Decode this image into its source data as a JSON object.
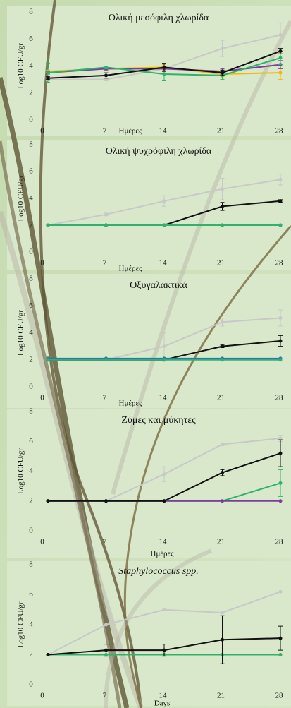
{
  "chart_data": [
    {
      "type": "line",
      "title": "Ολική μεσόφιλη χλωρίδα",
      "y_label": "Log10 CFU/gr",
      "x_label": "Ημέρες",
      "categories": [
        "0",
        "7",
        "14",
        "21",
        "28"
      ],
      "ylim": [
        0,
        8
      ],
      "yticks": [
        0,
        2,
        4,
        6,
        8
      ],
      "series": [
        {
          "color": "#c8c8c8",
          "values": [
            3.0,
            3.0,
            3.8,
            5.3,
            6.3
          ],
          "errors": [
            0.1,
            0.1,
            0.4,
            0.6,
            0.9
          ]
        },
        {
          "color": "#f5b800",
          "values": [
            3.6,
            3.8,
            3.9,
            3.4,
            3.5
          ],
          "errors": [
            0.1,
            0.1,
            0.2,
            0.2,
            0.5
          ]
        },
        {
          "color": "#7a3f9d",
          "values": [
            3.5,
            3.8,
            3.8,
            3.6,
            4.1
          ],
          "errors": [
            0.1,
            0.1,
            0.2,
            0.2,
            0.3
          ]
        },
        {
          "color": "#2db36a",
          "values": [
            3.5,
            3.9,
            3.4,
            3.3,
            4.6
          ],
          "errors": [
            0.7,
            0.1,
            0.5,
            0.3,
            0.5
          ]
        },
        {
          "color": "#111111",
          "values": [
            3.1,
            3.3,
            3.9,
            3.5,
            5.1
          ],
          "errors": [
            0.1,
            0.2,
            0.3,
            0.2,
            0.2
          ]
        }
      ]
    },
    {
      "type": "line",
      "title": "Ολική ψυχρόφιλη χλωρίδα",
      "y_label": "Log10 CFU/gr",
      "x_label": "Ημέρες",
      "categories": [
        "0",
        "7",
        "14",
        "21",
        "28"
      ],
      "ylim": [
        0,
        8
      ],
      "yticks": [
        0,
        2,
        4,
        6,
        8
      ],
      "series": [
        {
          "color": "#c8c8c8",
          "values": [
            2.0,
            2.8,
            3.8,
            4.7,
            5.4
          ],
          "errors": [
            0,
            0.1,
            0.4,
            0.8,
            0.4
          ]
        },
        {
          "color": "#f5b800",
          "values": [
            2.0,
            2.0,
            2.0,
            2.0,
            2.0
          ],
          "errors": [
            0,
            0,
            0,
            0,
            0
          ]
        },
        {
          "color": "#7a3f9d",
          "values": [
            2.0,
            2.0,
            2.0,
            2.0,
            2.0
          ],
          "errors": [
            0,
            0,
            0,
            0,
            0
          ]
        },
        {
          "color": "#111111",
          "values": [
            2.0,
            2.0,
            2.0,
            3.4,
            3.8
          ],
          "errors": [
            0,
            0,
            0,
            0.3,
            0.1
          ]
        },
        {
          "color": "#2db36a",
          "values": [
            2.0,
            2.0,
            2.0,
            2.0,
            2.0
          ],
          "errors": [
            0,
            0,
            0,
            0,
            0
          ]
        }
      ]
    },
    {
      "type": "line",
      "title": "Οξυγαλακτικά",
      "y_label": "Log10 CFU/gr",
      "x_label": "Ημέρες",
      "categories": [
        "0",
        "7",
        "14",
        "21",
        "28"
      ],
      "ylim": [
        0,
        8
      ],
      "yticks": [
        0,
        2,
        4,
        6,
        8
      ],
      "series": [
        {
          "color": "#c8c8c8",
          "values": [
            2.0,
            2.0,
            3.0,
            4.8,
            5.1
          ],
          "errors": [
            0,
            0,
            1.0,
            0.3,
            0.6
          ]
        },
        {
          "color": "#111111",
          "values": [
            2.0,
            2.0,
            2.0,
            3.0,
            3.4
          ],
          "errors": [
            0,
            0,
            0,
            0.1,
            0.4
          ]
        },
        {
          "color": "#2e75b6",
          "values": [
            2.1,
            2.1,
            2.1,
            2.1,
            2.1
          ],
          "errors": [
            0,
            0,
            0,
            0,
            0
          ]
        },
        {
          "color": "#2db36a",
          "values": [
            2.0,
            2.0,
            2.0,
            2.0,
            2.0
          ],
          "errors": [
            0,
            0,
            0,
            0,
            0
          ]
        }
      ]
    },
    {
      "type": "line",
      "title": "Ζύμες και μύκητες",
      "y_label": "Log10 CFU/gr",
      "x_label": "Ημέρες",
      "categories": [
        "0",
        "7",
        "14",
        "21",
        "28"
      ],
      "ylim": [
        0,
        8
      ],
      "yticks": [
        0,
        2,
        4,
        6,
        8
      ],
      "series": [
        {
          "color": "#c8c8c8",
          "values": [
            2.0,
            2.0,
            3.8,
            5.8,
            6.2
          ],
          "errors": [
            0,
            0,
            0.5,
            0.1,
            0.2
          ]
        },
        {
          "color": "#2db36a",
          "values": [
            2.0,
            2.0,
            2.0,
            2.0,
            3.2
          ],
          "errors": [
            0,
            0,
            0,
            0,
            0.9
          ]
        },
        {
          "color": "#7a3f9d",
          "values": [
            2.0,
            2.0,
            2.0,
            2.0,
            2.0
          ],
          "errors": [
            0,
            0,
            0,
            0,
            0
          ]
        },
        {
          "color": "#111111",
          "values": [
            2.0,
            2.0,
            2.0,
            3.9,
            5.2
          ],
          "errors": [
            0,
            0,
            0,
            0.2,
            0.9
          ]
        }
      ]
    },
    {
      "type": "line",
      "title": "Staphylococcus spp.",
      "y_label": "Log10 CFU/gr",
      "x_label": "Days",
      "categories": [
        "0",
        "7",
        "14",
        "21",
        "28"
      ],
      "ylim": [
        0,
        8
      ],
      "yticks": [
        0,
        2,
        4,
        6,
        8
      ],
      "series": [
        {
          "color": "#c8c8c8",
          "values": [
            2.0,
            4.0,
            5.0,
            4.8,
            6.2
          ],
          "errors": [
            0,
            0,
            0,
            0,
            0
          ]
        },
        {
          "color": "#f5b800",
          "values": [
            2.0,
            2.0,
            2.0,
            2.0,
            2.0
          ],
          "errors": [
            0,
            0,
            0,
            0,
            0
          ]
        },
        {
          "color": "#2db36a",
          "values": [
            2.0,
            2.0,
            2.0,
            2.0,
            2.0
          ],
          "errors": [
            0,
            0,
            0,
            0,
            0
          ]
        },
        {
          "color": "#111111",
          "values": [
            2.0,
            2.3,
            2.3,
            3.0,
            3.1
          ],
          "errors": [
            0,
            0.4,
            0.4,
            1.6,
            0.8
          ]
        }
      ]
    }
  ]
}
